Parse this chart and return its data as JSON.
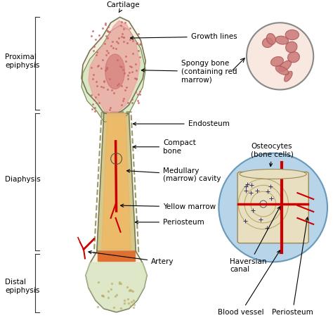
{
  "bg_color": "#ffffff",
  "labels": {
    "cartilage": "Cartilage",
    "growth_lines": "Growth lines",
    "spongy_bone": "Spongy bone\n(containing red\nmarrow)",
    "endosteum": "Endosteum",
    "compact_bone": "Compact\nbone",
    "medullary": "Medullary\n(marrow) cavity",
    "yellow_marrow": "Yellow marrow",
    "periosteum": "Periosteum",
    "artery": "Artery",
    "haversian": "Haversian\ncanal",
    "blood_vessel": "Blood vessel",
    "periosteum2": "Periosteum",
    "osteocytes": "Osteocytes\n(bone cells)",
    "proximal": "Proximal\nepiphysis",
    "diaphysis": "Diaphysis",
    "distal": "Distal\nepiphysis"
  },
  "colors": {
    "bone_outer": "#e8dfc0",
    "bone_inner": "#f5efe0",
    "spongy": "#f0a0a0",
    "compact": "#d4c88a",
    "marrow_cavity": "#e8b870",
    "cartilage_color": "#c8e0b0",
    "red_marrow": "#cc6666",
    "artery_color": "#cc0000",
    "inset_bg": "#b8d4e8",
    "inset_bone": "#e8dfc0",
    "text_color": "#000000"
  }
}
